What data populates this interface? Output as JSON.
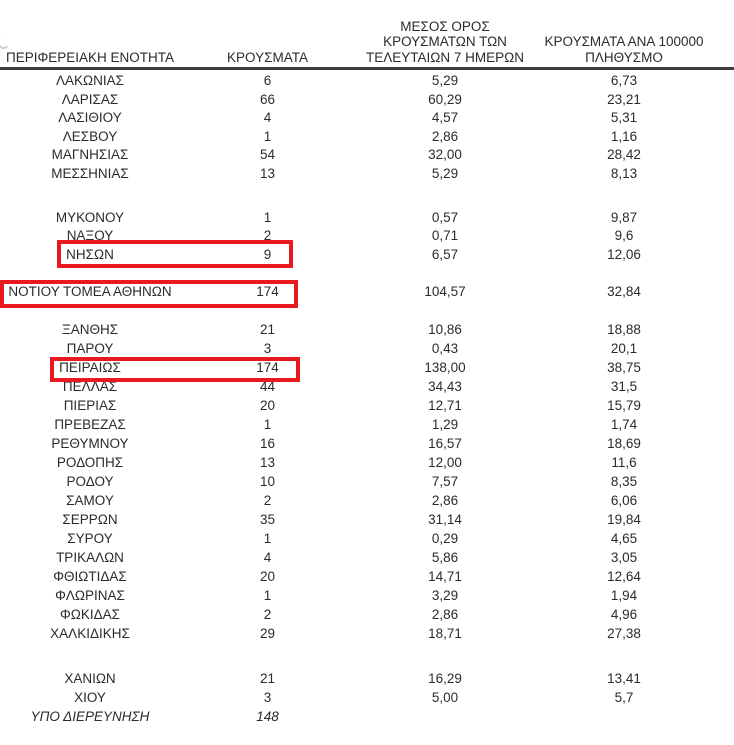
{
  "header": {
    "col1": "ΠΕΡΙΦΕΡΕΙΑΚΗ ΕΝΟΤΗΤΑ",
    "col2": "ΚΡΟΥΣΜΑΤΑ",
    "col3": "ΜΕΣΟΣ ΟΡΟΣ ΚΡΟΥΣΜΑΤΩΝ ΤΩΝ ΤΕΛΕΥΤΑΙΩΝ 7 ΗΜΕΡΩΝ",
    "col4": "ΚΡΟΥΣΜΑΤΑ ΑΝΑ 100000 ΠΛΗΘΥΣΜΟ"
  },
  "annotations": {
    "highlighted_rows": [
      "ΝΗΣΩΝ",
      "ΝΟΤΙΟΥ ΤΟΜΕΑ ΑΘΗΝΩΝ",
      "ΠΕΙΡΑΙΩΣ"
    ],
    "box_color": "#e8191f"
  },
  "table": {
    "rows": [
      {
        "name": "ΛΑΚΩΝΙΑΣ",
        "cases": "6",
        "avg7": "5,29",
        "per100k": "6,73"
      },
      {
        "name": "ΛΑΡΙΣΑΣ",
        "cases": "66",
        "avg7": "60,29",
        "per100k": "23,21"
      },
      {
        "name": "ΛΑΣΙΘΙΟΥ",
        "cases": "4",
        "avg7": "4,57",
        "per100k": "5,31"
      },
      {
        "name": "ΛΕΣΒΟΥ",
        "cases": "1",
        "avg7": "2,86",
        "per100k": "1,16"
      },
      {
        "name": "ΜΑΓΝΗΣΙΑΣ",
        "cases": "54",
        "avg7": "32,00",
        "per100k": "28,42"
      },
      {
        "name": "ΜΕΣΣΗΝΙΑΣ",
        "cases": "13",
        "avg7": "5,29",
        "per100k": "8,13"
      },
      {
        "type": "spacer",
        "h": 25
      },
      {
        "name": "ΜΥΚΟΝΟΥ",
        "cases": "1",
        "avg7": "0,57",
        "per100k": "9,87"
      },
      {
        "name": "ΝΑΞΟΥ",
        "cases": "2",
        "avg7": "0,71",
        "per100k": "9,6"
      },
      {
        "name": "ΝΗΣΩΝ",
        "cases": "9",
        "avg7": "6,57",
        "per100k": "12,06",
        "highlighted": true
      },
      {
        "type": "spacer",
        "h": 18.6
      },
      {
        "name": "ΝΟΤΙΟΥ ΤΟΜΕΑ ΑΘΗΝΩΝ",
        "cases": "174",
        "avg7": "104,57",
        "per100k": "32,84",
        "highlighted": true
      },
      {
        "type": "spacer",
        "h": 18.6
      },
      {
        "name": "ΞΑΝΘΗΣ",
        "cases": "21",
        "avg7": "10,86",
        "per100k": "18,88"
      },
      {
        "name": "ΠΑΡΟΥ",
        "cases": "3",
        "avg7": "0,43",
        "per100k": "20,1"
      },
      {
        "name": "ΠΕΙΡΑΙΩΣ",
        "cases": "174",
        "avg7": "138,00",
        "per100k": "38,75",
        "highlighted": true
      },
      {
        "name": "ΠΕΛΛΑΣ",
        "cases": "44",
        "avg7": "34,43",
        "per100k": "31,5"
      },
      {
        "name": "ΠΙΕΡΙΑΣ",
        "cases": "20",
        "avg7": "12,71",
        "per100k": "15,79"
      },
      {
        "name": "ΠΡΕΒΕΖΑΣ",
        "cases": "1",
        "avg7": "1,29",
        "per100k": "1,74"
      },
      {
        "name": "ΡΕΘΥΜΝΟΥ",
        "cases": "16",
        "avg7": "16,57",
        "per100k": "18,69"
      },
      {
        "name": "ΡΟΔΟΠΗΣ",
        "cases": "13",
        "avg7": "12,00",
        "per100k": "11,6"
      },
      {
        "name": "ΡΟΔΟΥ",
        "cases": "10",
        "avg7": "7,57",
        "per100k": "8,35"
      },
      {
        "name": "ΣΑΜΟΥ",
        "cases": "2",
        "avg7": "2,86",
        "per100k": "6,06"
      },
      {
        "name": "ΣΕΡΡΩΝ",
        "cases": "35",
        "avg7": "31,14",
        "per100k": "19,84"
      },
      {
        "name": "ΣΥΡΟΥ",
        "cases": "1",
        "avg7": "0,29",
        "per100k": "4,65"
      },
      {
        "name": "ΤΡΙΚΑΛΩΝ",
        "cases": "4",
        "avg7": "5,86",
        "per100k": "3,05"
      },
      {
        "name": "ΦΘΙΩΤΙΔΑΣ",
        "cases": "20",
        "avg7": "14,71",
        "per100k": "12,64"
      },
      {
        "name": "ΦΛΩΡΙΝΑΣ",
        "cases": "1",
        "avg7": "3,29",
        "per100k": "1,94"
      },
      {
        "name": "ΦΩΚΙΔΑΣ",
        "cases": "2",
        "avg7": "2,86",
        "per100k": "4,96"
      },
      {
        "name": "ΧΑΛΚΙΔΙΚΗΣ",
        "cases": "29",
        "avg7": "18,71",
        "per100k": "27,38"
      },
      {
        "type": "spacer",
        "h": 26
      },
      {
        "name": "ΧΑΝΙΩΝ",
        "cases": "21",
        "avg7": "16,29",
        "per100k": "13,41"
      },
      {
        "name": "ΧΙΟΥ",
        "cases": "3",
        "avg7": "5,00",
        "per100k": "5,7"
      },
      {
        "name": "ΥΠΟ ΔΙΕΡΕΥΝΗΣΗ",
        "cases": "148",
        "avg7": "",
        "per100k": "",
        "italic": true
      }
    ]
  }
}
